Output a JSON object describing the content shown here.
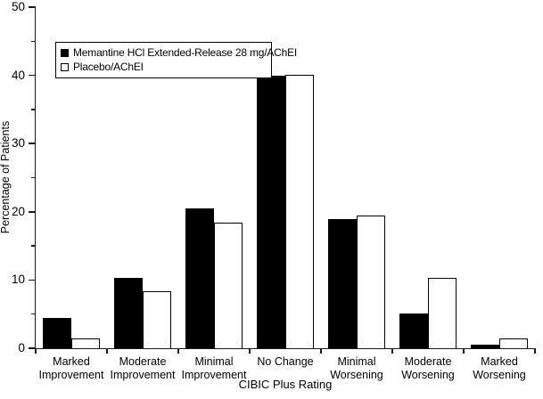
{
  "figure": {
    "background": "#ffffff",
    "ink_color": "#000000"
  },
  "chart_data": {
    "type": "bar",
    "title": "",
    "xlabel": "CIBIC Plus Rating",
    "ylabel": "Percentage of Patients",
    "categories": [
      "Marked\nImprovement",
      "Moderate\nImprovement",
      "Minimal\nImprovement",
      "No Change",
      "Minimal\nWorsening",
      "Moderate\nWorsening",
      "Marked\nWorsening"
    ],
    "series": [
      {
        "name": "Memantine HCl Extended-Release 28 mg/AChEI",
        "style": "filled",
        "color": "#000000",
        "values": [
          4.5,
          10.3,
          20.5,
          39.9,
          18.9,
          5.1,
          0.5
        ]
      },
      {
        "name": "Placebo/AChEI",
        "style": "open",
        "color": "#ffffff",
        "values": [
          1.5,
          8.4,
          18.4,
          40.1,
          19.5,
          10.3,
          1.5
        ]
      }
    ],
    "ylim": [
      0,
      50
    ],
    "yticks_major": [
      0,
      10,
      20,
      30,
      40,
      50
    ],
    "yticks_minor": [
      5,
      15,
      25,
      35,
      45
    ],
    "grid": false,
    "legend_position": "upper-left-inside"
  }
}
